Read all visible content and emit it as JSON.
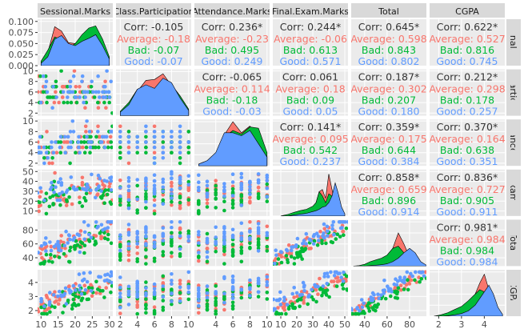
{
  "chart_data": {
    "type": "scatter-matrix",
    "title": "",
    "variables": [
      "Sessional.Marks",
      "Class.Participation",
      "Attendance.Marks",
      "Final.Exam.Marks",
      "Total",
      "CGPA"
    ],
    "row_strip_labels": [
      "Sessional.Marks",
      "Class.Participation",
      "Attendance.Marks",
      "Final.Exam.Marks",
      "Total",
      "CGPA"
    ],
    "groups": [
      {
        "name": "Average",
        "color": "#F8766D"
      },
      {
        "name": "Bad",
        "color": "#00BA38"
      },
      {
        "name": "Good",
        "color": "#619CFF"
      }
    ],
    "x_ticks": [
      [
        "10",
        "15",
        "20",
        "25",
        "30"
      ],
      [
        "2",
        "4",
        "6",
        "8",
        "10"
      ],
      [
        "4",
        "6",
        "8",
        "10"
      ],
      [
        "10",
        "20",
        "30",
        "40",
        "50"
      ],
      [
        "40",
        "60",
        "80"
      ],
      [
        "2",
        "3",
        "4"
      ]
    ],
    "y_ticks": [
      [
        "0.000",
        "0.025",
        "0.050",
        "0.075",
        "0.100"
      ],
      [
        "2",
        "4",
        "6",
        "8",
        "10"
      ],
      [
        "2",
        "4",
        "6",
        "8",
        "10"
      ],
      [
        "10",
        "20",
        "30",
        "40",
        "50"
      ],
      [
        "40",
        "60",
        "80"
      ],
      [
        "2",
        "3",
        "4"
      ]
    ],
    "ranges": [
      [
        9,
        31
      ],
      [
        1.5,
        10.3
      ],
      [
        1.5,
        10.3
      ],
      [
        5,
        52
      ],
      [
        28,
        95
      ],
      [
        1.6,
        4.9
      ]
    ],
    "density_ylim": [
      0,
      0.105
    ],
    "correlations": [
      {
        "row": 0,
        "col": 1,
        "corr": "Corr: -0.105",
        "group_values": [
          "Average: -0.18",
          "Bad: -0.07",
          "Good: -0.07"
        ]
      },
      {
        "row": 0,
        "col": 2,
        "corr": "Corr: 0.236*",
        "group_values": [
          "Average: -0.23",
          "Bad: 0.495",
          "Good: 0.249"
        ]
      },
      {
        "row": 0,
        "col": 3,
        "corr": "Corr: 0.244*",
        "group_values": [
          "Average: -0.06",
          "Bad: 0.613",
          "Good: 0.571"
        ]
      },
      {
        "row": 0,
        "col": 4,
        "corr": "Corr: 0.645*",
        "group_values": [
          "Average: 0.598",
          "Bad: 0.843",
          "Good: 0.802"
        ]
      },
      {
        "row": 0,
        "col": 5,
        "corr": "Corr: 0.622*",
        "group_values": [
          "Average: 0.527",
          "Bad: 0.816",
          "Good: 0.745"
        ]
      },
      {
        "row": 1,
        "col": 2,
        "corr": "Corr: -0.065",
        "group_values": [
          "Average: 0.114",
          "Bad: -0.18",
          "Good: -0.03"
        ]
      },
      {
        "row": 1,
        "col": 3,
        "corr": "Corr: 0.061",
        "group_values": [
          "Average: 0.18",
          "Bad: 0.09",
          "Good: 0.05"
        ]
      },
      {
        "row": 1,
        "col": 4,
        "corr": "Corr: 0.187*",
        "group_values": [
          "Average: 0.302",
          "Bad: 0.207",
          "Good: 0.180"
        ]
      },
      {
        "row": 1,
        "col": 5,
        "corr": "Corr: 0.212*",
        "group_values": [
          "Average: 0.298",
          "Bad: 0.178",
          "Good: 0.257"
        ]
      },
      {
        "row": 2,
        "col": 3,
        "corr": "Corr: 0.141*",
        "group_values": [
          "Average: 0.095",
          "Bad: 0.542",
          "Good: 0.237"
        ]
      },
      {
        "row": 2,
        "col": 4,
        "corr": "Corr: 0.359*",
        "group_values": [
          "Average: 0.175",
          "Bad: 0.644",
          "Good: 0.384"
        ]
      },
      {
        "row": 2,
        "col": 5,
        "corr": "Corr: 0.370*",
        "group_values": [
          "Average: 0.164",
          "Bad: 0.638",
          "Good: 0.351"
        ]
      },
      {
        "row": 3,
        "col": 4,
        "corr": "Corr: 0.858*",
        "group_values": [
          "Average: 0.659",
          "Bad: 0.896",
          "Good: 0.914"
        ]
      },
      {
        "row": 3,
        "col": 5,
        "corr": "Corr: 0.836*",
        "group_values": [
          "Average: 0.727",
          "Bad: 0.905",
          "Good: 0.911"
        ]
      },
      {
        "row": 4,
        "col": 5,
        "corr": "Corr: 0.981*",
        "group_values": [
          "Average: 0.984",
          "Bad: 0.984",
          "Good: 0.984"
        ]
      }
    ],
    "densities": [
      {
        "var": 0,
        "x": [
          10,
          12,
          14,
          16,
          18,
          20,
          22,
          24,
          26,
          28,
          30
        ],
        "series": [
          {
            "group": "Average",
            "y": [
              0.01,
              0.03,
              0.088,
              0.078,
              0.052,
              0.05,
              0.06,
              0.066,
              0.06,
              0.04,
              0.015
            ]
          },
          {
            "group": "Bad",
            "y": [
              0.01,
              0.035,
              0.065,
              0.058,
              0.04,
              0.05,
              0.07,
              0.085,
              0.09,
              0.06,
              0.02
            ]
          },
          {
            "group": "Good",
            "y": [
              0.005,
              0.02,
              0.06,
              0.068,
              0.05,
              0.045,
              0.055,
              0.062,
              0.07,
              0.045,
              0.015
            ]
          }
        ]
      },
      {
        "var": 1,
        "x": [
          2,
          3,
          4,
          5,
          6,
          7,
          8,
          9,
          10
        ],
        "series": [
          {
            "group": "Average",
            "y": [
              0.005,
              0.02,
              0.055,
              0.08,
              0.082,
              0.095,
              0.068,
              0.04,
              0.012
            ]
          },
          {
            "group": "Bad",
            "y": [
              0.01,
              0.03,
              0.06,
              0.052,
              0.048,
              0.065,
              0.07,
              0.045,
              0.015
            ]
          },
          {
            "group": "Good",
            "y": [
              0.008,
              0.025,
              0.06,
              0.07,
              0.062,
              0.085,
              0.075,
              0.04,
              0.012
            ]
          }
        ]
      },
      {
        "var": 2,
        "x": [
          2,
          3,
          4,
          5,
          6,
          7,
          8,
          9,
          10
        ],
        "series": [
          {
            "group": "Average",
            "y": [
              0.003,
              0.01,
              0.025,
              0.07,
              0.1,
              0.075,
              0.09,
              0.06,
              0.02
            ]
          },
          {
            "group": "Bad",
            "y": [
              0.002,
              0.008,
              0.02,
              0.065,
              0.08,
              0.072,
              0.088,
              0.085,
              0.03
            ]
          },
          {
            "group": "Good",
            "y": [
              0.004,
              0.012,
              0.03,
              0.075,
              0.075,
              0.068,
              0.08,
              0.05,
              0.02
            ]
          }
        ]
      },
      {
        "var": 3,
        "x": [
          10,
          14,
          18,
          22,
          26,
          30,
          32,
          34,
          36,
          38,
          40,
          42,
          44,
          46,
          48,
          50
        ],
        "series": [
          {
            "group": "Average",
            "y": [
              0,
              0,
              0.005,
              0.008,
              0.012,
              0.02,
              0.03,
              0.055,
              0.06,
              0.04,
              0.095,
              0.06,
              0.025,
              0.01,
              0.005,
              0
            ]
          },
          {
            "group": "Bad",
            "y": [
              0,
              0.003,
              0.008,
              0.012,
              0.015,
              0.022,
              0.03,
              0.055,
              0.045,
              0.03,
              0.05,
              0.045,
              0.03,
              0.012,
              0.004,
              0
            ]
          },
          {
            "group": "Good",
            "y": [
              0,
              0,
              0.002,
              0.004,
              0.006,
              0.01,
              0.012,
              0.015,
              0.02,
              0.022,
              0.03,
              0.045,
              0.075,
              0.05,
              0.02,
              0.005
            ]
          }
        ]
      },
      {
        "var": 4,
        "x": [
          30,
          35,
          40,
          45,
          50,
          55,
          60,
          65,
          70,
          75,
          80,
          85,
          90,
          95
        ],
        "series": [
          {
            "group": "Average",
            "y": [
              0,
              0,
              0.001,
              0.003,
              0.006,
              0.01,
              0.02,
              0.04,
              0.075,
              0.05,
              0.02,
              0.008,
              0.002,
              0
            ]
          },
          {
            "group": "Bad",
            "y": [
              0,
              0.001,
              0.004,
              0.01,
              0.014,
              0.018,
              0.025,
              0.04,
              0.045,
              0.03,
              0.015,
              0.006,
              0.002,
              0
            ]
          },
          {
            "group": "Good",
            "y": [
              0,
              0,
              0,
              0.001,
              0.002,
              0.003,
              0.005,
              0.01,
              0.018,
              0.03,
              0.04,
              0.03,
              0.01,
              0.002
            ]
          }
        ]
      },
      {
        "var": 5,
        "x": [
          1.8,
          2.1,
          2.4,
          2.7,
          3.0,
          3.3,
          3.6,
          3.8,
          4.0,
          4.2,
          4.4,
          4.6,
          4.8
        ],
        "series": [
          {
            "group": "Average",
            "y": [
              0,
              0.002,
              0.005,
              0.01,
              0.018,
              0.03,
              0.05,
              0.075,
              0.095,
              0.06,
              0.03,
              0.01,
              0
            ]
          },
          {
            "group": "Bad",
            "y": [
              0,
              0.003,
              0.008,
              0.015,
              0.022,
              0.035,
              0.05,
              0.06,
              0.055,
              0.05,
              0.03,
              0.01,
              0
            ]
          },
          {
            "group": "Good",
            "y": [
              0,
              0,
              0.001,
              0.003,
              0.006,
              0.012,
              0.025,
              0.04,
              0.055,
              0.07,
              0.05,
              0.02,
              0.004
            ]
          }
        ]
      }
    ]
  }
}
